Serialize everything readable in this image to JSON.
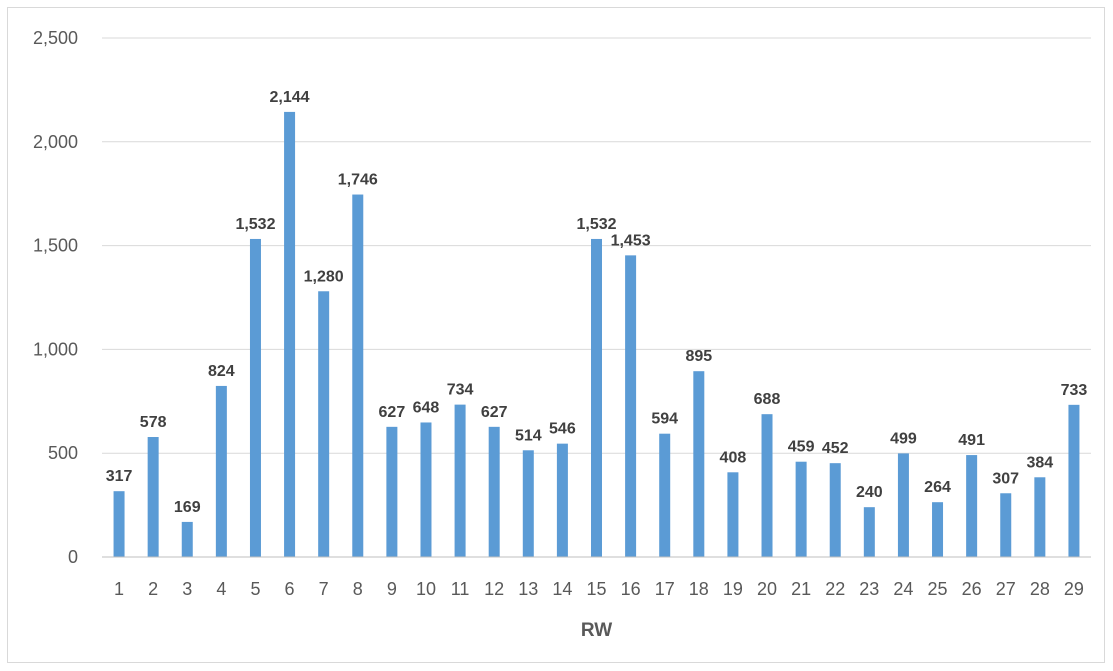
{
  "chart_data": {
    "type": "bar",
    "title": "",
    "xlabel": "RW",
    "ylabel": "",
    "ylim": [
      0,
      2500
    ],
    "yticks": [
      0,
      500,
      1000,
      1500,
      2000,
      2500
    ],
    "ytick_labels": [
      "0",
      "500",
      "1,000",
      "1,500",
      "2,000",
      "2,500"
    ],
    "categories": [
      "1",
      "2",
      "3",
      "4",
      "5",
      "6",
      "7",
      "8",
      "9",
      "10",
      "11",
      "12",
      "13",
      "14",
      "15",
      "16",
      "17",
      "18",
      "19",
      "20",
      "21",
      "22",
      "23",
      "24",
      "25",
      "26",
      "27",
      "28",
      "29"
    ],
    "values": [
      317,
      578,
      169,
      824,
      1532,
      2144,
      1280,
      1746,
      627,
      648,
      734,
      627,
      514,
      546,
      1532,
      1453,
      594,
      895,
      408,
      688,
      459,
      452,
      240,
      499,
      264,
      491,
      307,
      384,
      733
    ],
    "value_labels": [
      "317",
      "578",
      "169",
      "824",
      "1,532",
      "2,144",
      "1,280",
      "1,746",
      "627",
      "648",
      "734",
      "627",
      "514",
      "546",
      "1,532",
      "1,453",
      "594",
      "895",
      "408",
      "688",
      "459",
      "452",
      "240",
      "499",
      "264",
      "491",
      "307",
      "384",
      "733"
    ],
    "grid": true,
    "legend": "none",
    "colors": {
      "bar": "#5b9bd5",
      "grid": "#d9d9d9",
      "axis": "#bfbfbf"
    }
  }
}
